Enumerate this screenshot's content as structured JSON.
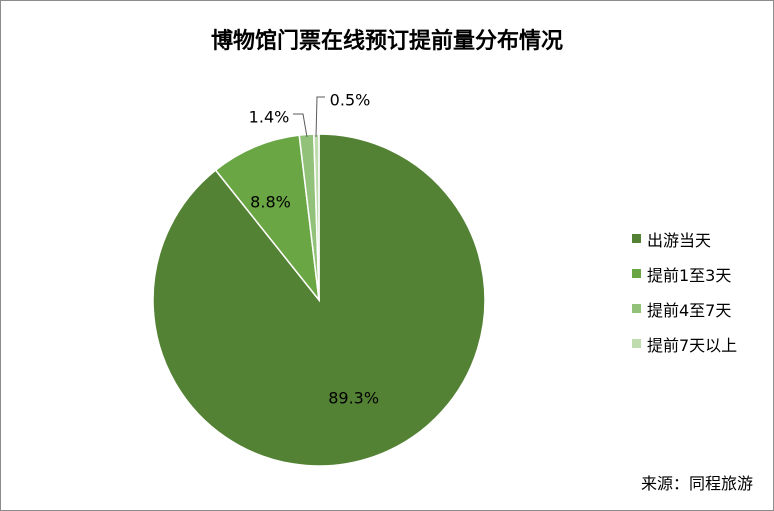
{
  "chart_data": {
    "type": "pie",
    "title": "博物馆门票在线预订提前量分布情况",
    "categories": [
      "出游当天",
      "提前1至3天",
      "提前4至7天",
      "提前7天以上"
    ],
    "values": [
      89.3,
      8.8,
      1.4,
      0.5
    ],
    "labels": [
      "89.3%",
      "8.8%",
      "1.4%",
      "0.5%"
    ],
    "colors": [
      "#548235",
      "#6aa644",
      "#92c27a",
      "#bfdcae"
    ],
    "legend_position": "right"
  },
  "source": "来源：同程旅游"
}
